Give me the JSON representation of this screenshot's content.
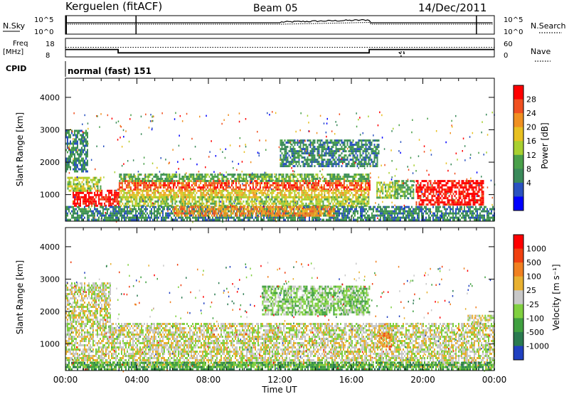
{
  "header": {
    "station": "Kerguelen (fitACF)",
    "beam": "Beam 05",
    "date": "14/Dec/2011"
  },
  "colors": {
    "axis": "#000000",
    "background": "#ffffff",
    "ground_scatter": "#c8c8c8"
  },
  "chart_data": [
    {
      "id": "noise_panel",
      "type": "line",
      "left_label": "N.Sky",
      "right_label": "N.Search",
      "left_ticks": [
        "10^5",
        "10^0"
      ],
      "right_ticks": [
        "10^5",
        "10^0"
      ]
    },
    {
      "id": "freq_panel",
      "type": "line",
      "left_label_lines": [
        "Freq",
        "[MHz]"
      ],
      "right_label": "Nave",
      "left_ticks": [
        "18",
        "8"
      ],
      "right_ticks": [
        "60",
        "0"
      ],
      "freq_steps": [
        {
          "x_hours": 0.0,
          "mhz": 12.0
        },
        {
          "x_hours": 2.95,
          "mhz": 12.0
        },
        {
          "x_hours": 2.95,
          "mhz": 10.2
        },
        {
          "x_hours": 17.0,
          "mhz": 10.2
        },
        {
          "x_hours": 17.0,
          "mhz": 12.0
        },
        {
          "x_hours": 24.0,
          "mhz": 12.0
        }
      ],
      "nave_level": 13.2
    },
    {
      "id": "cpid_row",
      "label": "CPID",
      "value": "normal (fast) 151"
    },
    {
      "id": "power_panel",
      "type": "heatmap",
      "ylabel": "Slant Range [km]",
      "yticks": [
        "4000",
        "3000",
        "2000",
        "1000"
      ],
      "ytick_values": [
        4000,
        3000,
        2000,
        1000
      ],
      "ylim": [
        180,
        4590
      ],
      "xlim": [
        0,
        24
      ],
      "colorbar_label": "Power [dB]",
      "colorbar_ticks": [
        "28",
        "24",
        "20",
        "16",
        "12",
        "8",
        "4"
      ],
      "colorbar_colors": [
        "#0000ff",
        "#2a52c0",
        "#3a8a5a",
        "#4aa04a",
        "#a8d030",
        "#e8c020",
        "#f09020",
        "#f05020",
        "#ff0000"
      ],
      "bands": [
        {
          "x0": 0.4,
          "x1": 3.0,
          "r0": 650,
          "r1": 1150,
          "level": 8
        },
        {
          "x0": 0.1,
          "x1": 2.0,
          "r0": 1150,
          "r1": 1550,
          "level": 4
        },
        {
          "x0": 2.9,
          "x1": 17.0,
          "r0": 1150,
          "r1": 1450,
          "level": 7
        },
        {
          "x0": 3.0,
          "x1": 17.0,
          "r0": 950,
          "r1": 1150,
          "level": 5
        },
        {
          "x0": 3.0,
          "x1": 17.0,
          "r0": 650,
          "r1": 950,
          "level": 4
        },
        {
          "x0": 3.0,
          "x1": 17.0,
          "r0": 1450,
          "r1": 1650,
          "level": 3
        },
        {
          "x0": 17.4,
          "x1": 18.5,
          "r0": 900,
          "r1": 1400,
          "level": 4
        },
        {
          "x0": 18.4,
          "x1": 19.5,
          "r0": 900,
          "r1": 1450,
          "level": 3
        },
        {
          "x0": 19.6,
          "x1": 23.4,
          "r0": 700,
          "r1": 1450,
          "level": 8
        },
        {
          "x0": 0.0,
          "x1": 24.0,
          "r0": 250,
          "r1": 650,
          "level": 2
        },
        {
          "x0": 6.0,
          "x1": 15.0,
          "r0": 350,
          "r1": 650,
          "level": 6
        },
        {
          "x0": 0.0,
          "x1": 1.2,
          "r0": 1700,
          "r1": 3000,
          "level": 2
        },
        {
          "x0": 12.0,
          "x1": 17.5,
          "r0": 1900,
          "r1": 2700,
          "level": 2
        }
      ]
    },
    {
      "id": "velocity_panel",
      "type": "heatmap",
      "ylabel": "Slant Range [km]",
      "yticks": [
        "4000",
        "3000",
        "2000",
        "1000"
      ],
      "ytick_values": [
        4000,
        3000,
        2000,
        1000
      ],
      "ylim": [
        180,
        4590
      ],
      "xlim": [
        0,
        24
      ],
      "colorbar_label": "Velocity [m s⁻¹]",
      "colorbar_ticks": [
        "1000",
        "500",
        "100",
        "25",
        "-25",
        "-100",
        "-500",
        "-1000"
      ],
      "colorbar_colors": [
        "#2040c0",
        "#2a7a50",
        "#40a040",
        "#80d040",
        "#c8c8c8",
        "#e8b030",
        "#f08020",
        "#f04010",
        "#ff0000"
      ],
      "bands": [
        {
          "x0": 0.0,
          "x1": 24.0,
          "r0": 300,
          "r1": 1650,
          "level": 4
        },
        {
          "x0": 0.0,
          "x1": 2.5,
          "r0": 1650,
          "r1": 2900,
          "level": 4
        },
        {
          "x0": 17.4,
          "x1": 18.2,
          "r0": 950,
          "r1": 1350,
          "level": 6
        },
        {
          "x0": 22.5,
          "x1": 24.0,
          "r0": 1650,
          "r1": 1900,
          "level": 4
        },
        {
          "x0": 0.0,
          "x1": 24.0,
          "r0": 200,
          "r1": 450,
          "level": 2
        },
        {
          "x0": 11.0,
          "x1": 17.0,
          "r0": 1900,
          "r1": 2800,
          "level": 3
        }
      ]
    }
  ],
  "x_axis": {
    "ticks": [
      "00:00",
      "04:00",
      "08:00",
      "12:00",
      "16:00",
      "20:00",
      "00:00"
    ],
    "tick_hours": [
      0,
      4,
      8,
      12,
      16,
      20,
      24
    ],
    "label": "Time UT"
  }
}
